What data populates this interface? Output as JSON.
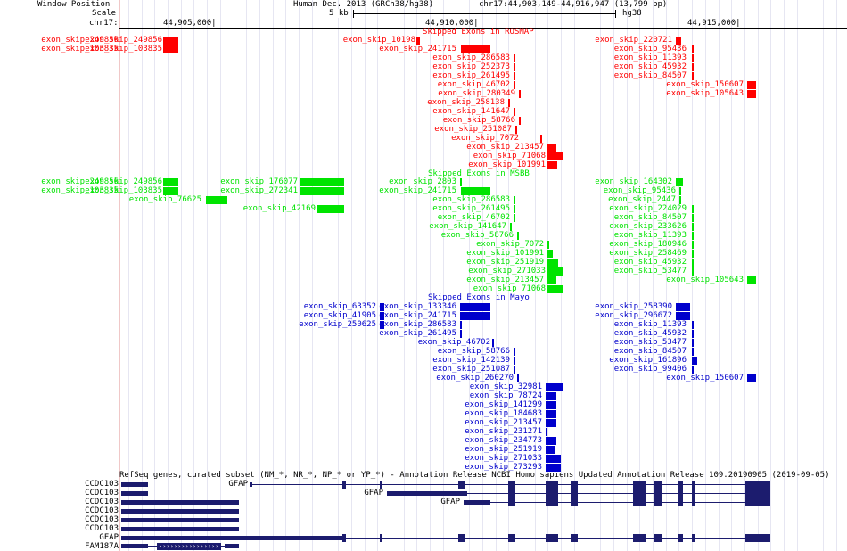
{
  "header": {
    "window_position_label": "Window Position",
    "scale_label": "Scale",
    "chrom_label": "chr17:",
    "assembly": "Human Dec. 2013 (GRCh38/hg38)",
    "position": "chr17:44,903,149-44,916,947 (13,799 bp)",
    "scale_bar_label": "5 kb",
    "scale_bar_assembly": "hg38",
    "ruler_ticks": [
      "44,905,000|",
      "44,910,000|",
      "44,915,000|"
    ]
  },
  "tracks": {
    "rosmap": {
      "title": "Skipped Exons in ROSMAP",
      "color": "#ff0000",
      "left_labels": [
        "exon_skip_249856",
        "exon_skip_103835"
      ]
    },
    "msbb": {
      "title": "Skipped Exons in MSBB",
      "color": "#00e400",
      "left_labels": [
        "exon_skip_249856",
        "exon_skip_103835"
      ]
    },
    "mayo": {
      "title": "Skipped Exons in Mayo",
      "color": "#0000cc"
    },
    "refseq": {
      "title": "RefSeq genes, curated subset (NM_*, NR_*, NP_* or YP_*) - Annotation Release NCBI Homo sapiens Updated Annotation Release 109.20190905 (2019-09-05)",
      "color": "#1c1c6e",
      "left_labels": [
        "CCDC103",
        "CCDC103",
        "CCDC103",
        "CCDC103",
        "CCDC103",
        "CCDC103",
        "GFAP",
        "FAM187A"
      ],
      "inline_labels": [
        "GFAP",
        "GFAP",
        "GFAP"
      ]
    }
  },
  "features": {
    "rosmap": [
      "exon_skip_249856",
      "exon_skip_103835",
      "exon_skip_10198",
      "exon_skip_241715",
      "exon_skip_286583",
      "exon_skip_252373",
      "exon_skip_261495",
      "exon_skip_46702",
      "exon_skip_280349",
      "exon_skip_258138",
      "exon_skip_141647",
      "exon_skip_58766",
      "exon_skip_251087",
      "exon_skip_7072",
      "exon_skip_213457",
      "exon_skip_71068",
      "exon_skip_101991",
      "exon_skip_220721",
      "exon_skip_95436",
      "exon_skip_11393",
      "exon_skip_45932",
      "exon_skip_84507",
      "exon_skip_150607",
      "exon_skip_105643"
    ],
    "msbb": [
      "exon_skip_249856",
      "exon_skip_103835",
      "exon_skip_76625",
      "exon_skip_176077",
      "exon_skip_272341",
      "exon_skip_42169",
      "exon_skip_2803",
      "exon_skip_241715",
      "exon_skip_286583",
      "exon_skip_261495",
      "exon_skip_46702",
      "exon_skip_141647",
      "exon_skip_58766",
      "exon_skip_7072",
      "exon_skip_101991",
      "exon_skip_251919",
      "exon_skip_271033",
      "exon_skip_213457",
      "exon_skip_71068",
      "exon_skip_164302",
      "exon_skip_95436",
      "exon_skip_2447",
      "exon_skip_224029",
      "exon_skip_84507",
      "exon_skip_233626",
      "exon_skip_11393",
      "exon_skip_180946",
      "exon_skip_258469",
      "exon_skip_45932",
      "exon_skip_53477",
      "exon_skip_105643"
    ],
    "mayo": [
      "exon_skip_63352",
      "exon_skip_41905",
      "exon_skip_250625",
      "exon_skip_133346",
      "exon_skip_241715",
      "exon_skip_286583",
      "exon_skip_261495",
      "exon_skip_46702",
      "exon_skip_58766",
      "exon_skip_142139",
      "exon_skip_251087",
      "exon_skip_260270",
      "exon_skip_32981",
      "exon_skip_78724",
      "exon_skip_141299",
      "exon_skip_184683",
      "exon_skip_213457",
      "exon_skip_231271",
      "exon_skip_234773",
      "exon_skip_251919",
      "exon_skip_271033",
      "exon_skip_273293",
      "exon_skip_258390",
      "exon_skip_296672",
      "exon_skip_11393",
      "exon_skip_45932",
      "exon_skip_53477",
      "exon_skip_84507",
      "exon_skip_161896",
      "exon_skip_99406",
      "exon_skip_150607"
    ]
  }
}
